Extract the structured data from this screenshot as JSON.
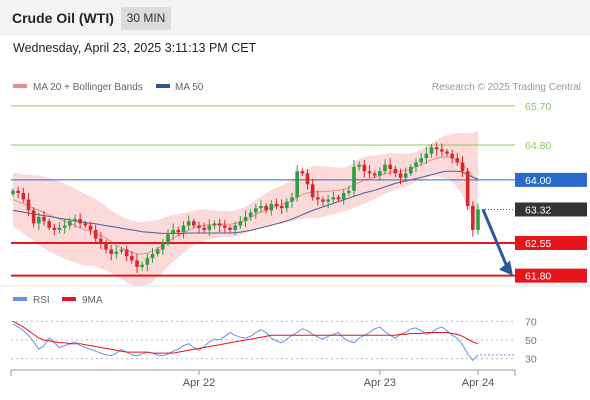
{
  "header": {
    "title": "Crude Oil (WTI)",
    "timeframe": "30 MIN"
  },
  "timestamp": "Wednesday, April 23, 2025 3:11:13 PM CET",
  "research_credit": "Research © 2025 Trading Central",
  "colors": {
    "bull": "#2e9e45",
    "bear": "#d8282e",
    "ma20": "#f08a8a",
    "band_fill": "#fbd3d3",
    "ma50": "#4a5d9a",
    "resistance": "#8cc860",
    "support": "#e8141c",
    "pivot": "#2a6acc",
    "last": "#333333",
    "rsi": "#6d8fe0",
    "rsi_ma": "#e8141c",
    "arrow": "#2a5a98"
  },
  "chart_data": [
    {
      "type": "candlestick",
      "legend": [
        {
          "name": "MA 20 + Bollinger Bands",
          "color": "#f08a8a"
        },
        {
          "name": "MA 50",
          "color": "#2f5497"
        }
      ],
      "x_ticks": [
        {
          "label": "Apr 22",
          "index": 36
        },
        {
          "label": "Apr 23",
          "index": 71
        },
        {
          "label": "Apr 24",
          "index": 90
        }
      ],
      "ylim": [
        61.7,
        65.95
      ],
      "levels": [
        {
          "value": 65.7,
          "label": "65.70",
          "kind": "resistance"
        },
        {
          "value": 64.8,
          "label": "64.80",
          "kind": "resistance"
        },
        {
          "value": 64.0,
          "label": "64.00",
          "kind": "pivot"
        },
        {
          "value": 63.32,
          "label": "63.32",
          "kind": "last"
        },
        {
          "value": 62.55,
          "label": "62.55",
          "kind": "support"
        },
        {
          "value": 61.8,
          "label": "61.80",
          "kind": "support"
        }
      ],
      "close_path": [
        63.75,
        63.7,
        63.55,
        63.3,
        63.0,
        63.15,
        63.05,
        62.9,
        62.85,
        62.9,
        62.95,
        63.05,
        63.1,
        63.0,
        62.95,
        62.85,
        62.65,
        62.55,
        62.4,
        62.3,
        62.35,
        62.4,
        62.25,
        62.15,
        62.0,
        62.05,
        62.2,
        62.3,
        62.4,
        62.55,
        62.75,
        62.85,
        62.8,
        62.95,
        63.05,
        62.95,
        62.9,
        62.85,
        62.95,
        63.0,
        62.95,
        62.9,
        62.85,
        62.95,
        63.05,
        63.15,
        63.25,
        63.35,
        63.4,
        63.3,
        63.45,
        63.4,
        63.35,
        63.5,
        63.6,
        64.2,
        64.15,
        63.9,
        63.6,
        63.55,
        63.5,
        63.55,
        63.6,
        63.55,
        63.7,
        63.75,
        64.3,
        64.35,
        64.2,
        64.15,
        64.1,
        64.2,
        64.35,
        64.25,
        64.15,
        64.05,
        64.15,
        64.3,
        64.4,
        64.5,
        64.6,
        64.75,
        64.7,
        64.65,
        64.6,
        64.5,
        64.4,
        64.2,
        63.4,
        62.85,
        63.32
      ],
      "ma20_path": [
        63.55,
        63.5,
        63.45,
        63.4,
        63.35,
        63.3,
        63.25,
        63.2,
        63.15,
        63.1,
        63.05,
        63.0,
        62.95,
        62.9,
        62.85,
        62.82,
        62.78,
        62.72,
        62.66,
        62.58,
        62.5,
        62.44,
        62.38,
        62.33,
        62.3,
        62.3,
        62.32,
        62.36,
        62.42,
        62.5,
        62.58,
        62.66,
        62.72,
        62.78,
        62.84,
        62.9,
        62.94,
        62.96,
        62.97,
        62.98,
        62.98,
        62.98,
        62.98,
        63.0,
        63.03,
        63.08,
        63.14,
        63.2,
        63.26,
        63.32,
        63.36,
        63.4,
        63.43,
        63.47,
        63.52,
        63.6,
        63.66,
        63.7,
        63.72,
        63.73,
        63.73,
        63.74,
        63.75,
        63.76,
        63.78,
        63.82,
        63.88,
        63.94,
        63.99,
        64.03,
        64.06,
        64.1,
        64.14,
        64.17,
        64.19,
        64.2,
        64.22,
        64.25,
        64.3,
        64.35,
        64.4,
        64.46,
        64.5,
        64.52,
        64.53,
        64.5,
        64.45,
        64.36,
        64.22,
        64.08,
        63.98
      ],
      "ma50_path": [
        63.3,
        63.28,
        63.26,
        63.24,
        63.22,
        63.2,
        63.18,
        63.16,
        63.14,
        63.12,
        63.1,
        63.08,
        63.06,
        63.04,
        63.02,
        63.0,
        62.99,
        62.97,
        62.95,
        62.93,
        62.91,
        62.89,
        62.87,
        62.85,
        62.83,
        62.81,
        62.8,
        62.79,
        62.78,
        62.77,
        62.77,
        62.77,
        62.77,
        62.77,
        62.78,
        62.78,
        62.78,
        62.78,
        62.78,
        62.78,
        62.78,
        62.78,
        62.78,
        62.79,
        62.8,
        62.82,
        62.84,
        62.87,
        62.9,
        62.93,
        62.96,
        62.99,
        63.02,
        63.06,
        63.1,
        63.15,
        63.2,
        63.25,
        63.3,
        63.34,
        63.38,
        63.42,
        63.46,
        63.5,
        63.54,
        63.58,
        63.62,
        63.66,
        63.7,
        63.73,
        63.76,
        63.8,
        63.84,
        63.88,
        63.92,
        63.95,
        63.98,
        64.0,
        64.03,
        64.06,
        64.09,
        64.12,
        64.15,
        64.18,
        64.2,
        64.2,
        64.2,
        64.18,
        64.12,
        64.06,
        64.02
      ],
      "bb_width_path": [
        0.62,
        0.65,
        0.68,
        0.72,
        0.76,
        0.8,
        0.82,
        0.84,
        0.85,
        0.86,
        0.86,
        0.86,
        0.85,
        0.84,
        0.82,
        0.8,
        0.78,
        0.76,
        0.74,
        0.72,
        0.72,
        0.72,
        0.73,
        0.74,
        0.74,
        0.74,
        0.72,
        0.7,
        0.66,
        0.62,
        0.58,
        0.54,
        0.5,
        0.46,
        0.42,
        0.4,
        0.38,
        0.36,
        0.34,
        0.32,
        0.3,
        0.3,
        0.3,
        0.3,
        0.3,
        0.3,
        0.32,
        0.34,
        0.36,
        0.38,
        0.4,
        0.42,
        0.44,
        0.46,
        0.48,
        0.52,
        0.56,
        0.58,
        0.6,
        0.6,
        0.58,
        0.56,
        0.54,
        0.52,
        0.5,
        0.5,
        0.52,
        0.54,
        0.54,
        0.52,
        0.5,
        0.48,
        0.46,
        0.44,
        0.42,
        0.4,
        0.38,
        0.36,
        0.34,
        0.34,
        0.36,
        0.38,
        0.42,
        0.46,
        0.5,
        0.55,
        0.62,
        0.72,
        0.85,
        1.0,
        1.15
      ]
    },
    {
      "type": "line",
      "legend": [
        {
          "name": "RSI",
          "color": "#6d8fe0"
        },
        {
          "name": "9MA",
          "color": "#e8141c"
        }
      ],
      "ylim": [
        20,
        80
      ],
      "y_ticks": [
        70,
        50,
        30
      ],
      "series": [
        {
          "name": "RSI",
          "values": [
            67,
            64,
            60,
            55,
            48,
            40,
            44,
            52,
            47,
            42,
            44,
            46,
            48,
            44,
            42,
            40,
            38,
            36,
            34,
            33,
            36,
            40,
            37,
            34,
            33,
            35,
            37,
            36,
            34,
            33,
            35,
            38,
            40,
            44,
            46,
            42,
            39,
            43,
            48,
            51,
            50,
            54,
            58,
            55,
            53,
            52,
            54,
            58,
            61,
            58,
            52,
            49,
            47,
            51,
            55,
            58,
            62,
            60,
            56,
            53,
            51,
            54,
            56,
            58,
            52,
            49,
            47,
            52,
            55,
            58,
            62,
            64,
            59,
            55,
            52,
            56,
            58,
            62,
            63,
            60,
            56,
            58,
            62,
            64,
            60,
            55,
            52,
            45,
            35,
            28,
            34
          ]
        },
        {
          "name": "9MA",
          "values": [
            70,
            67,
            64,
            60,
            56,
            52,
            50,
            49,
            48,
            47,
            47,
            46,
            46,
            46,
            45,
            44,
            43,
            42,
            41,
            40,
            39,
            38,
            37,
            37,
            37,
            37,
            37,
            36,
            36,
            36,
            36,
            36,
            37,
            38,
            39,
            40,
            41,
            42,
            43,
            44,
            45,
            46,
            47,
            48,
            49,
            50,
            51,
            52,
            53,
            54,
            55,
            55,
            55,
            55,
            55,
            55,
            55,
            55,
            55,
            55,
            55,
            55,
            55,
            55,
            55,
            55,
            55,
            55,
            55,
            55,
            55,
            55,
            55,
            55,
            55,
            56,
            56,
            57,
            57,
            57,
            58,
            58,
            58,
            58,
            58,
            57,
            56,
            54,
            51,
            48,
            46
          ]
        }
      ]
    }
  ]
}
